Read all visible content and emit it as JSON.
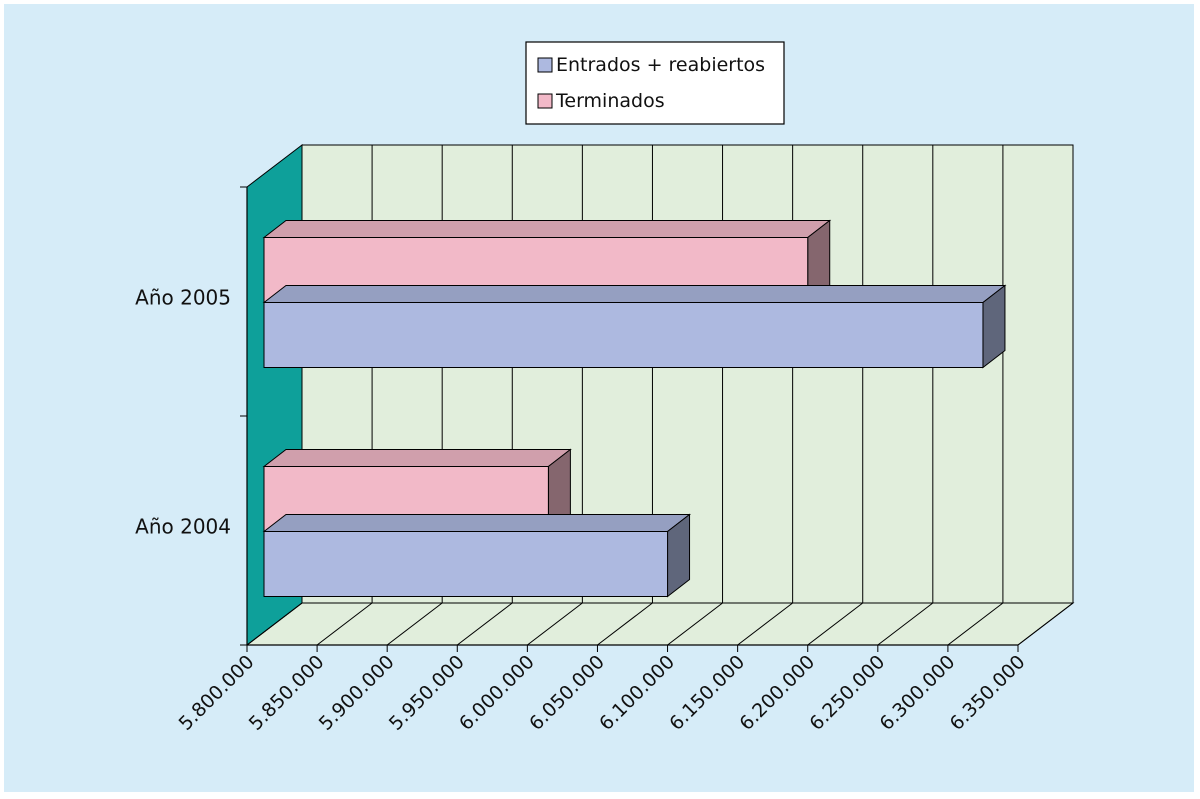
{
  "chart_data": {
    "type": "bar",
    "orientation": "horizontal",
    "three_d": true,
    "categories": [
      "Año 2004",
      "Año 2005"
    ],
    "series": [
      {
        "name": "Entrados + reabiertos",
        "values": [
          6100000,
          6325000
        ],
        "color": "#adb9e0"
      },
      {
        "name": "Terminados",
        "values": [
          6015000,
          6200000
        ],
        "color": "#f2b9c8"
      }
    ],
    "xlim": [
      5800000,
      6350000
    ],
    "xticks": [
      5800000,
      5850000,
      5900000,
      5950000,
      6000000,
      6050000,
      6100000,
      6150000,
      6200000,
      6250000,
      6300000,
      6350000
    ],
    "xtick_labels": [
      "5.800.000",
      "5.850.000",
      "5.900.000",
      "5.950.000",
      "6.000.000",
      "6.050.000",
      "6.100.000",
      "6.150.000",
      "6.200.000",
      "6.250.000",
      "6.300.000",
      "6.350.000"
    ],
    "title": "",
    "xlabel": "",
    "ylabel": "",
    "grid": true,
    "legend_position": "top-center",
    "colors": {
      "background": "#d6ecf8",
      "plot_back_wall": "#e1eedc",
      "plot_floor": "#e1eedc",
      "side_wall": "#0ea09a"
    }
  }
}
